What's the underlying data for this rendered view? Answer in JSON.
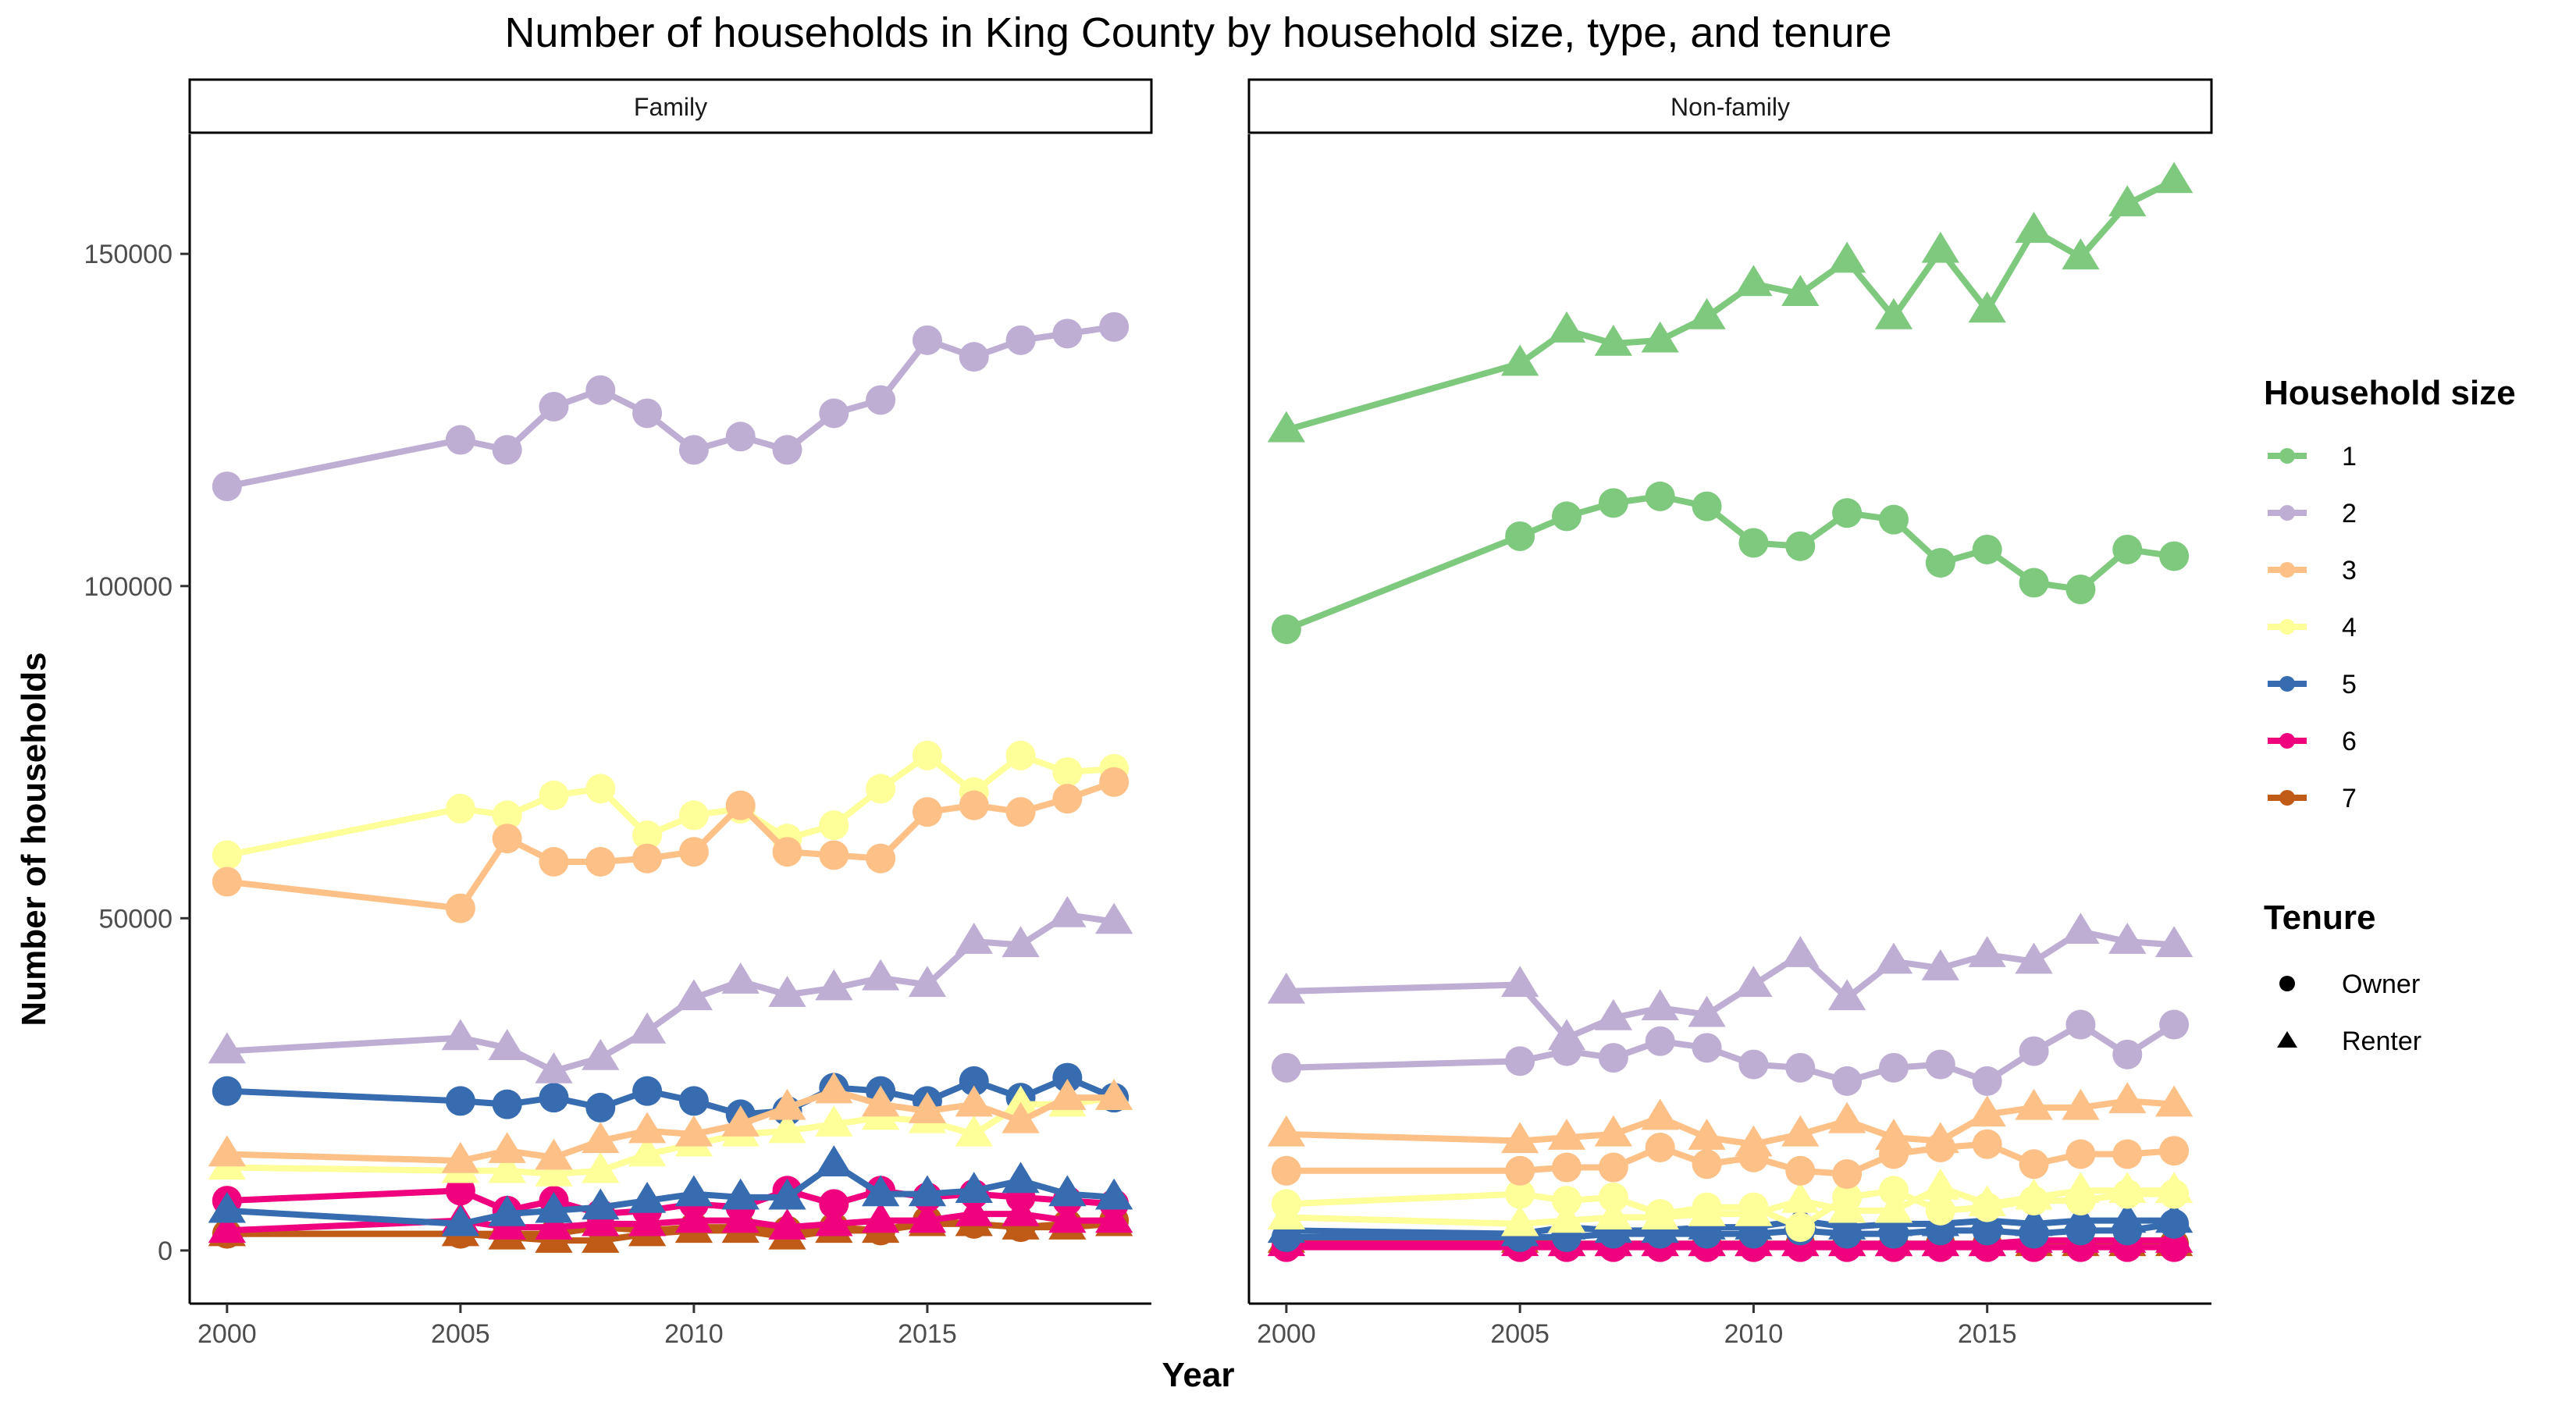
{
  "chart_data": {
    "type": "line",
    "title": "Number of households in King County by household size, type, and tenure",
    "xlabel": "Year",
    "ylabel": "Number of households",
    "x_ticks": [
      2000,
      2005,
      2010,
      2015
    ],
    "y_ticks": [
      0,
      50000,
      100000,
      150000
    ],
    "y_tick_labels": [
      "0",
      "50000",
      "100000",
      "150000"
    ],
    "xlim": [
      1999.2,
      2019.8
    ],
    "ylim": [
      -8000,
      168000
    ],
    "years": [
      2000,
      2005,
      2006,
      2007,
      2008,
      2009,
      2010,
      2011,
      2012,
      2013,
      2014,
      2015,
      2016,
      2017,
      2018,
      2019
    ],
    "legend_size": {
      "title": "Household size",
      "entries": [
        {
          "label": "1",
          "color": "#7fc97f"
        },
        {
          "label": "2",
          "color": "#beaed4"
        },
        {
          "label": "3",
          "color": "#fdc086"
        },
        {
          "label": "4",
          "color": "#ffff99"
        },
        {
          "label": "5",
          "color": "#386cb0"
        },
        {
          "label": "6",
          "color": "#f0027f"
        },
        {
          "label": "7",
          "color": "#bf5b17"
        }
      ]
    },
    "legend_tenure": {
      "title": "Tenure",
      "entries": [
        {
          "label": "Owner",
          "shape": "circle"
        },
        {
          "label": "Renter",
          "shape": "triangle"
        }
      ]
    },
    "panels": [
      {
        "label": "Family",
        "series": [
          {
            "size": "2",
            "tenure": "Owner",
            "values": [
              115000,
              122000,
              120500,
              127000,
              129500,
              126000,
              120500,
              122500,
              120500,
              126000,
              128000,
              137000,
              134500,
              137000,
              138000,
              139000
            ]
          },
          {
            "size": "2",
            "tenure": "Renter",
            "values": [
              30000,
              32000,
              30500,
              27000,
              29000,
              33000,
              38000,
              40500,
              38500,
              39500,
              41000,
              40000,
              46500,
              46000,
              50500,
              49500
            ]
          },
          {
            "size": "3",
            "tenure": "Owner",
            "values": [
              55500,
              51500,
              62000,
              58500,
              58500,
              59000,
              60000,
              67000,
              60000,
              59500,
              59000,
              66000,
              67000,
              66000,
              68000,
              70500
            ]
          },
          {
            "size": "3",
            "tenure": "Renter",
            "values": [
              14500,
              13500,
              15000,
              14000,
              16500,
              18000,
              17500,
              19000,
              21500,
              24000,
              22000,
              21000,
              22000,
              19500,
              23000,
              23000
            ]
          },
          {
            "size": "4",
            "tenure": "Owner",
            "values": [
              59500,
              66500,
              65500,
              68500,
              69500,
              62500,
              65500,
              66500,
              62000,
              64000,
              69500,
              74500,
              69000,
              74500,
              72000,
              72500
            ]
          },
          {
            "size": "4",
            "tenure": "Renter",
            "values": [
              12500,
              12000,
              12000,
              11500,
              12000,
              14500,
              16000,
              17500,
              18000,
              19000,
              20000,
              19500,
              17500,
              22000,
              22000,
              23000
            ]
          },
          {
            "size": "5",
            "tenure": "Owner",
            "values": [
              24000,
              22500,
              22000,
              23000,
              21500,
              24000,
              22500,
              20500,
              21000,
              24500,
              24000,
              22500,
              25500,
              23000,
              26000,
              23000
            ]
          },
          {
            "size": "5",
            "tenure": "Renter",
            "values": [
              6000,
              4000,
              5500,
              6000,
              6500,
              7500,
              8500,
              8000,
              8000,
              13000,
              8500,
              8500,
              9000,
              10500,
              8500,
              8000
            ]
          },
          {
            "size": "6",
            "tenure": "Owner",
            "values": [
              7500,
              9000,
              6000,
              7500,
              5500,
              6000,
              7000,
              6500,
              9000,
              7000,
              9000,
              8000,
              8500,
              8000,
              7500,
              7000
            ]
          },
          {
            "size": "6",
            "tenure": "Renter",
            "values": [
              3000,
              4500,
              3500,
              3500,
              4000,
              4000,
              4500,
              4500,
              3500,
              4000,
              4500,
              4500,
              5500,
              5500,
              4500,
              4500
            ]
          },
          {
            "size": "7",
            "tenure": "Owner",
            "values": [
              2500,
              2500,
              2500,
              2500,
              3500,
              3000,
              3500,
              3500,
              3000,
              3500,
              3000,
              4500,
              4000,
              3500,
              4000,
              4500
            ]
          },
          {
            "size": "7",
            "tenure": "Renter",
            "values": [
              2500,
              2500,
              2000,
              1500,
              1500,
              2500,
              3000,
              3000,
              2000,
              3000,
              3000,
              4000,
              4000,
              3500,
              3500,
              4000
            ]
          }
        ]
      },
      {
        "label": "Non-family",
        "series": [
          {
            "size": "1",
            "tenure": "Owner",
            "values": [
              93500,
              107500,
              110500,
              112500,
              113500,
              112000,
              106500,
              106000,
              111000,
              110000,
              103500,
              105500,
              100500,
              99500,
              105500,
              104500
            ]
          },
          {
            "size": "1",
            "tenure": "Renter",
            "values": [
              123500,
              133500,
              138500,
              136500,
              137000,
              140500,
              145500,
              144000,
              149000,
              140500,
              150500,
              141500,
              153500,
              149500,
              157500,
              161000
            ]
          },
          {
            "size": "2",
            "tenure": "Owner",
            "values": [
              27500,
              28500,
              30000,
              29000,
              31500,
              30500,
              28000,
              27500,
              25500,
              27500,
              28000,
              25500,
              30000,
              34000,
              29500,
              34000
            ]
          },
          {
            "size": "2",
            "tenure": "Renter",
            "values": [
              39000,
              40000,
              32000,
              35000,
              36500,
              35500,
              40000,
              44500,
              38000,
              43500,
              42500,
              44500,
              43500,
              48000,
              46500,
              46000
            ]
          },
          {
            "size": "3",
            "tenure": "Owner",
            "values": [
              12000,
              12000,
              12500,
              12500,
              15500,
              13000,
              14000,
              12000,
              11500,
              14500,
              15500,
              16000,
              13000,
              14500,
              14500,
              15000
            ]
          },
          {
            "size": "3",
            "tenure": "Renter",
            "values": [
              17500,
              16500,
              17000,
              17500,
              20000,
              17000,
              16000,
              17500,
              19500,
              17000,
              16500,
              20500,
              21500,
              21500,
              22500,
              22000
            ]
          },
          {
            "size": "4",
            "tenure": "Owner",
            "values": [
              7000,
              8500,
              7500,
              8000,
              5500,
              6500,
              6500,
              3500,
              8000,
              9000,
              6000,
              6500,
              7500,
              7500,
              8500,
              8500
            ]
          },
          {
            "size": "4",
            "tenure": "Renter",
            "values": [
              5000,
              4000,
              4500,
              5000,
              5000,
              5500,
              5500,
              7500,
              6000,
              6000,
              9500,
              7000,
              8000,
              9000,
              9000,
              9000
            ]
          },
          {
            "size": "5",
            "tenure": "Owner",
            "values": [
              2000,
              2000,
              2000,
              2500,
              2500,
              2500,
              2500,
              3000,
              2500,
              2500,
              3000,
              3000,
              2500,
              3000,
              3000,
              4000
            ]
          },
          {
            "size": "5",
            "tenure": "Renter",
            "values": [
              3000,
              2500,
              3500,
              3000,
              3000,
              3500,
              3500,
              4500,
              3500,
              4000,
              4000,
              4500,
              4000,
              4500,
              4500,
              4500
            ]
          },
          {
            "size": "6",
            "tenure": "Owner",
            "values": [
              500,
              500,
              500,
              500,
              500,
              500,
              500,
              500,
              500,
              500,
              500,
              500,
              500,
              500,
              500,
              500
            ]
          },
          {
            "size": "6",
            "tenure": "Renter",
            "values": [
              1000,
              1000,
              1000,
              1000,
              1000,
              1000,
              1000,
              1000,
              1000,
              1000,
              1000,
              1000,
              1500,
              1500,
              1500,
              1500
            ]
          },
          {
            "size": "7",
            "tenure": "Owner",
            "values": [
              1500,
              1000,
              1000,
              1000,
              1000,
              1000,
              1000,
              1000,
              1000,
              1000,
              1000,
              1000,
              1000,
              1000,
              1000,
              1000
            ]
          },
          {
            "size": "7",
            "tenure": "Renter",
            "values": [
              1500,
              1500,
              1000,
              1000,
              1000,
              1000,
              1000,
              1000,
              1000,
              1000,
              1000,
              1000,
              1000,
              1000,
              1000,
              1000
            ]
          }
        ]
      }
    ]
  }
}
